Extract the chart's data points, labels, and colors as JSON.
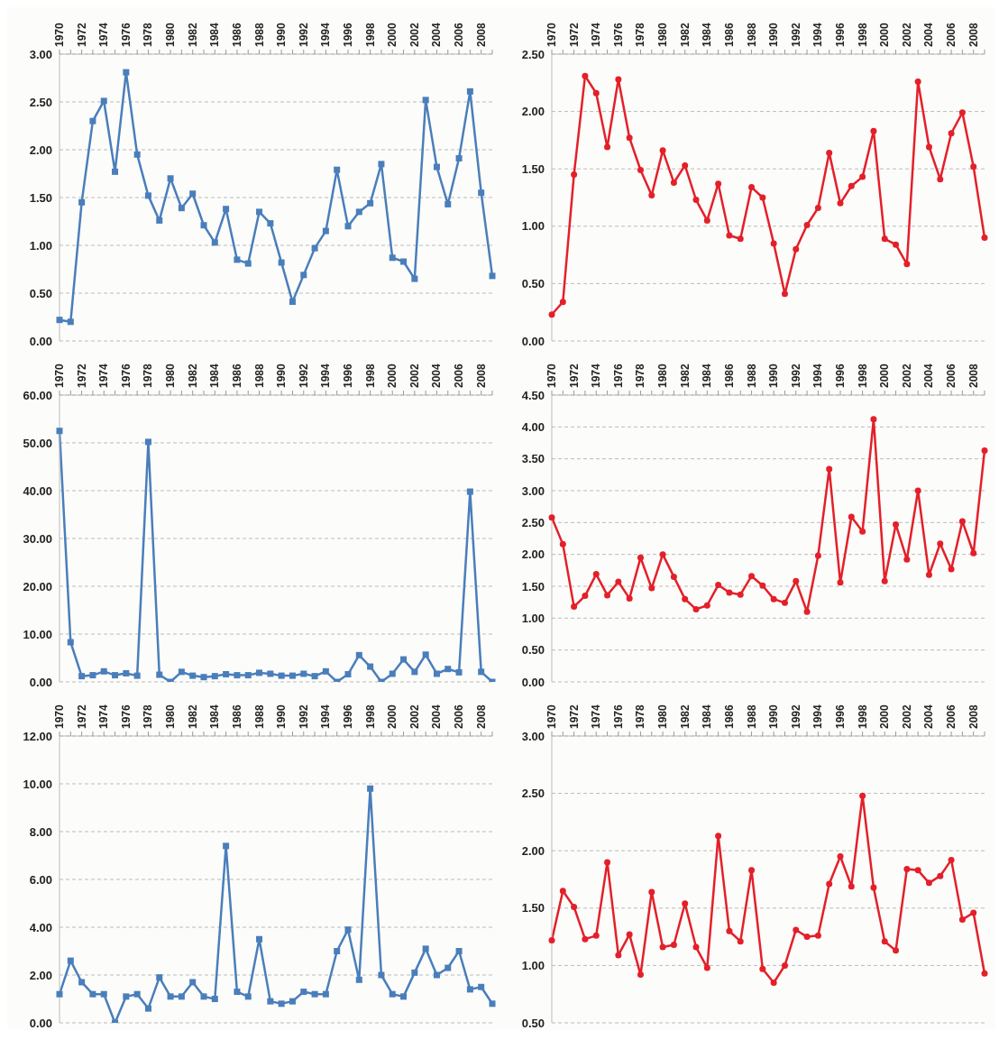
{
  "chart_data": [
    {
      "type": "line",
      "categories": [
        "1970",
        null,
        "1972",
        null,
        "1974",
        null,
        "1976",
        null,
        "1978",
        null,
        "1980",
        null,
        "1982",
        null,
        "1984",
        null,
        "1986",
        null,
        "1988",
        null,
        "1990",
        null,
        "1992",
        null,
        "1994",
        null,
        "1996",
        null,
        "1998",
        null,
        "2000",
        null,
        "2002",
        null,
        "2004",
        null,
        "2006",
        null,
        "2008",
        null
      ],
      "series": [
        {
          "color": "#4a7ebb",
          "values": [
            0.22,
            0.2,
            1.45,
            2.3,
            2.51,
            1.77,
            2.81,
            1.95,
            1.52,
            1.26,
            1.7,
            1.39,
            1.54,
            1.21,
            1.03,
            1.38,
            0.85,
            0.81,
            1.35,
            1.23,
            0.82,
            0.41,
            0.69,
            0.97,
            1.15,
            1.79,
            1.2,
            1.35,
            1.44,
            1.85,
            0.87,
            0.83,
            0.65,
            2.52,
            1.82,
            1.43,
            1.91,
            2.61,
            1.55,
            0.68
          ]
        }
      ],
      "ylim": [
        0,
        3
      ],
      "yticks": [
        {
          "value": 0,
          "label": "0.00"
        },
        {
          "value": 0.5,
          "label": "0.50"
        },
        {
          "value": 1,
          "label": "1.00"
        },
        {
          "value": 1.5,
          "label": "1.50"
        },
        {
          "value": 2,
          "label": "2.00"
        },
        {
          "value": 2.5,
          "label": "2.50"
        },
        {
          "value": 3,
          "label": "3.00"
        }
      ],
      "grid": "y",
      "marker": "square",
      "line_style": "solid"
    },
    {
      "type": "line",
      "categories": [
        "1970",
        null,
        "1972",
        null,
        "1974",
        null,
        "1976",
        null,
        "1978",
        null,
        "1980",
        null,
        "1982",
        null,
        "1984",
        null,
        "1986",
        null,
        "1988",
        null,
        "1990",
        null,
        "1992",
        null,
        "1994",
        null,
        "1996",
        null,
        "1998",
        null,
        "2000",
        null,
        "2002",
        null,
        "2004",
        null,
        "2006",
        null,
        "2008",
        null
      ],
      "series": [
        {
          "color": "#e3202a",
          "values": [
            0.23,
            0.34,
            1.45,
            2.31,
            2.16,
            1.69,
            2.28,
            1.77,
            1.49,
            1.27,
            1.66,
            1.38,
            1.53,
            1.23,
            1.05,
            1.37,
            0.92,
            0.89,
            1.34,
            1.25,
            0.85,
            0.41,
            0.8,
            1.01,
            1.16,
            1.64,
            1.2,
            1.35,
            1.43,
            1.83,
            0.89,
            0.84,
            0.67,
            2.26,
            1.69,
            1.41,
            1.81,
            1.99,
            1.52,
            0.9
          ]
        }
      ],
      "ylim": [
        0,
        2.5
      ],
      "yticks": [
        {
          "value": 0,
          "label": "0.00"
        },
        {
          "value": 0.5,
          "label": "0.50"
        },
        {
          "value": 1,
          "label": "1.00"
        },
        {
          "value": 1.5,
          "label": "1.50"
        },
        {
          "value": 2,
          "label": "2.00"
        },
        {
          "value": 2.5,
          "label": "2.50"
        }
      ],
      "grid": "y",
      "marker": "circle",
      "line_style": "solid"
    },
    {
      "type": "line",
      "categories": [
        "1970",
        null,
        "1972",
        null,
        "1974",
        null,
        "1976",
        null,
        "1978",
        null,
        "1980",
        null,
        "1982",
        null,
        "1984",
        null,
        "1986",
        null,
        "1988",
        null,
        "1990",
        null,
        "1992",
        null,
        "1994",
        null,
        "1996",
        null,
        "1998",
        null,
        "2000",
        null,
        "2002",
        null,
        "2004",
        null,
        "2006",
        null,
        "2008",
        null
      ],
      "series": [
        {
          "color": "#4a7ebb",
          "values": [
            52.5,
            8.3,
            1.2,
            1.4,
            2.2,
            1.4,
            1.8,
            1.3,
            50.2,
            1.5,
            0.0,
            2.1,
            1.3,
            1.0,
            1.2,
            1.6,
            1.4,
            1.4,
            1.9,
            1.7,
            1.3,
            1.3,
            1.7,
            1.2,
            2.2,
            0.0,
            1.6,
            5.6,
            3.2,
            0.0,
            1.7,
            4.7,
            2.1,
            5.7,
            1.7,
            2.7,
            2.0,
            39.8,
            2.1,
            0.0
          ]
        }
      ],
      "ylim": [
        0,
        60
      ],
      "yticks": [
        {
          "value": 0,
          "label": "0.00"
        },
        {
          "value": 10,
          "label": "10.00"
        },
        {
          "value": 20,
          "label": "20.00"
        },
        {
          "value": 30,
          "label": "30.00"
        },
        {
          "value": 40,
          "label": "40.00"
        },
        {
          "value": 50,
          "label": "50.00"
        },
        {
          "value": 60,
          "label": "60.00"
        }
      ],
      "grid": "y",
      "marker": "square",
      "line_style": "solid"
    },
    {
      "type": "line",
      "categories": [
        "1970",
        null,
        "1972",
        null,
        "1974",
        null,
        "1976",
        null,
        "1978",
        null,
        "1980",
        null,
        "1982",
        null,
        "1984",
        null,
        "1986",
        null,
        "1988",
        null,
        "1990",
        null,
        "1992",
        null,
        "1994",
        null,
        "1996",
        null,
        "1998",
        null,
        "2000",
        null,
        "2002",
        null,
        "2004",
        null,
        "2006",
        null,
        "2008",
        null
      ],
      "series": [
        {
          "color": "#e3202a",
          "values": [
            2.58,
            2.16,
            1.18,
            1.35,
            1.69,
            1.36,
            1.57,
            1.31,
            1.95,
            1.47,
            2.0,
            1.65,
            1.3,
            1.14,
            1.2,
            1.52,
            1.4,
            1.37,
            1.66,
            1.51,
            1.3,
            1.24,
            1.58,
            1.1,
            1.98,
            3.34,
            1.56,
            2.59,
            2.36,
            4.12,
            1.58,
            2.47,
            1.92,
            3.0,
            1.68,
            2.17,
            1.77,
            2.52,
            2.02,
            3.63
          ]
        }
      ],
      "ylim": [
        0,
        4.5
      ],
      "yticks": [
        {
          "value": 0,
          "label": "0.00"
        },
        {
          "value": 0.5,
          "label": "0.50"
        },
        {
          "value": 1,
          "label": "1.00"
        },
        {
          "value": 1.5,
          "label": "1.50"
        },
        {
          "value": 2,
          "label": "2.00"
        },
        {
          "value": 2.5,
          "label": "2.50"
        },
        {
          "value": 3,
          "label": "3.00"
        },
        {
          "value": 3.5,
          "label": "3.50"
        },
        {
          "value": 4,
          "label": "4.00"
        },
        {
          "value": 4.5,
          "label": "4.50"
        }
      ],
      "grid": "y",
      "marker": "circle",
      "line_style": "solid"
    },
    {
      "type": "line",
      "categories": [
        "1970",
        null,
        "1972",
        null,
        "1974",
        null,
        "1976",
        null,
        "1978",
        null,
        "1980",
        null,
        "1982",
        null,
        "1984",
        null,
        "1986",
        null,
        "1988",
        null,
        "1990",
        null,
        "1992",
        null,
        "1994",
        null,
        "1996",
        null,
        "1998",
        null,
        "2000",
        null,
        "2002",
        null,
        "2004",
        null,
        "2006",
        null,
        "2008",
        null
      ],
      "series": [
        {
          "color": "#4a7ebb",
          "values": [
            1.2,
            2.6,
            1.7,
            1.2,
            1.2,
            0.0,
            1.1,
            1.2,
            0.6,
            1.9,
            1.1,
            1.1,
            1.7,
            1.1,
            1.0,
            7.4,
            1.3,
            1.1,
            3.5,
            0.9,
            0.8,
            0.9,
            1.3,
            1.2,
            1.2,
            3.0,
            3.9,
            1.8,
            9.8,
            2.0,
            1.2,
            1.1,
            2.1,
            3.1,
            2.0,
            2.3,
            3.0,
            1.4,
            1.5,
            0.8
          ]
        }
      ],
      "ylim": [
        0,
        12
      ],
      "yticks": [
        {
          "value": 0,
          "label": "0.00"
        },
        {
          "value": 2,
          "label": "2.00"
        },
        {
          "value": 4,
          "label": "4.00"
        },
        {
          "value": 6,
          "label": "6.00"
        },
        {
          "value": 8,
          "label": "8.00"
        },
        {
          "value": 10,
          "label": "10.00"
        },
        {
          "value": 12,
          "label": "12.00"
        }
      ],
      "grid": "y",
      "marker": "square",
      "line_style": "solid"
    },
    {
      "type": "line",
      "categories": [
        "1970",
        null,
        "1972",
        null,
        "1974",
        null,
        "1976",
        null,
        "1978",
        null,
        "1980",
        null,
        "1982",
        null,
        "1984",
        null,
        "1986",
        null,
        "1988",
        null,
        "1990",
        null,
        "1992",
        null,
        "1994",
        null,
        "1996",
        null,
        "1998",
        null,
        "2000",
        null,
        "2002",
        null,
        "2004",
        null,
        "2006",
        null,
        "2008",
        null
      ],
      "series": [
        {
          "color": "#e3202a",
          "values": [
            1.22,
            1.65,
            1.51,
            1.23,
            1.26,
            1.9,
            1.09,
            1.27,
            0.92,
            1.64,
            1.16,
            1.18,
            1.54,
            1.16,
            0.98,
            2.13,
            1.3,
            1.21,
            1.83,
            0.97,
            0.85,
            1.0,
            1.31,
            1.25,
            1.26,
            1.71,
            1.95,
            1.69,
            2.48,
            1.68,
            1.21,
            1.13,
            1.84,
            1.83,
            1.72,
            1.78,
            1.92,
            1.4,
            1.46,
            0.93
          ]
        }
      ],
      "ylim": [
        0.5,
        3
      ],
      "yticks": [
        {
          "value": 0.5,
          "label": "0.50"
        },
        {
          "value": 1,
          "label": "1.00"
        },
        {
          "value": 1.5,
          "label": "1.50"
        },
        {
          "value": 2,
          "label": "2.00"
        },
        {
          "value": 2.5,
          "label": "2.50"
        },
        {
          "value": 3,
          "label": "3.00"
        }
      ],
      "grid": "y",
      "marker": "circle",
      "line_style": "solid"
    }
  ]
}
